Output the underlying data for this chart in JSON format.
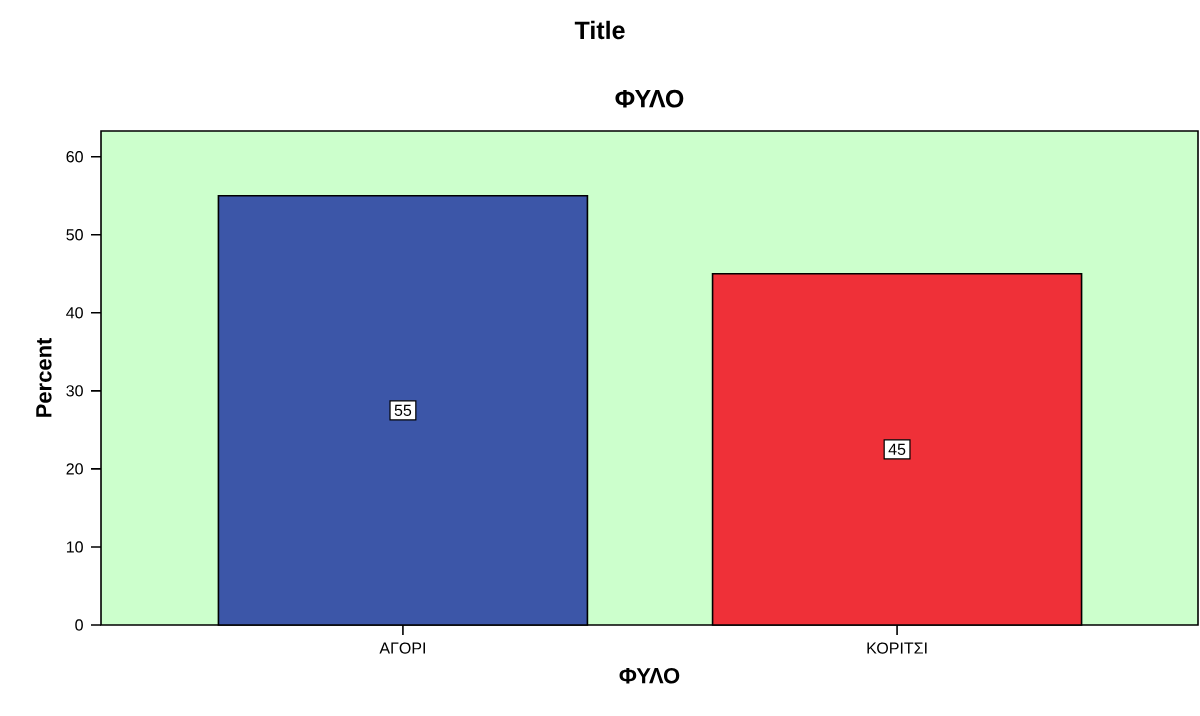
{
  "chart_data": {
    "type": "bar",
    "title": "Title",
    "subtitle": "ΦΥΛΟ",
    "xlabel": "ΦΥΛΟ",
    "ylabel": "Percent",
    "categories": [
      "ΑΓΟΡΙ",
      "ΚΟΡΙΤΣΙ"
    ],
    "values": [
      55,
      45
    ],
    "colors": [
      "#3c56a8",
      "#ef3038"
    ],
    "ylim": [
      0,
      63.3
    ],
    "yticks": [
      0,
      10,
      20,
      30,
      40,
      50,
      60
    ],
    "data_labels": true
  }
}
